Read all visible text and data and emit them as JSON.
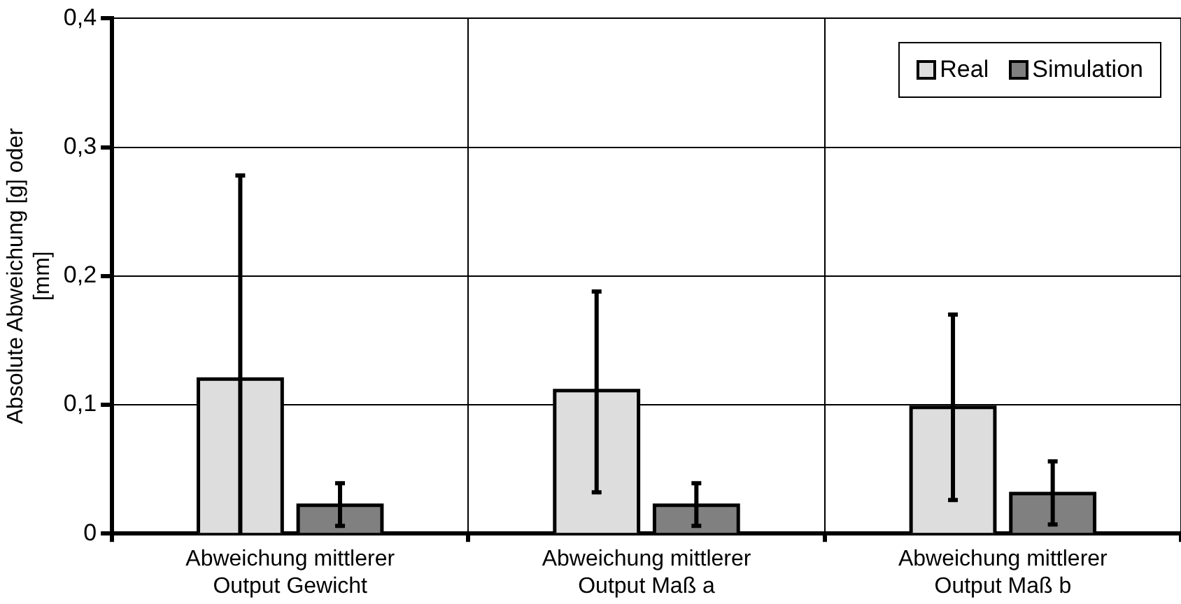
{
  "chart_data": {
    "type": "bar",
    "ylabel": "Absolute Abweichung [g] oder [mm]",
    "categories": [
      "Abweichung mittlerer Output Gewicht",
      "Abweichung mittlerer Output Maß a",
      "Abweichung mittlerer Output Maß b"
    ],
    "series": [
      {
        "name": "Real",
        "color": "#dddddd",
        "values": [
          0.12,
          0.111,
          0.098
        ],
        "errors": [
          [
            0,
            0.278
          ],
          [
            0.032,
            0.188
          ],
          [
            0.026,
            0.17
          ]
        ]
      },
      {
        "name": "Simulation",
        "color": "#808080",
        "values": [
          0.022,
          0.022,
          0.031
        ],
        "errors": [
          [
            0.006,
            0.039
          ],
          [
            0.006,
            0.039
          ],
          [
            0.007,
            0.056
          ]
        ]
      }
    ],
    "ylim": [
      0,
      0.4
    ],
    "yticks": [
      0,
      {
        "value": 0.1,
        "label": "0,1"
      },
      {
        "value": 0.2,
        "label": "0,2"
      },
      {
        "value": 0.3,
        "label": "0,3"
      },
      {
        "value": 0.4,
        "label": "0,4"
      }
    ],
    "grid": true,
    "legend": "top right"
  }
}
